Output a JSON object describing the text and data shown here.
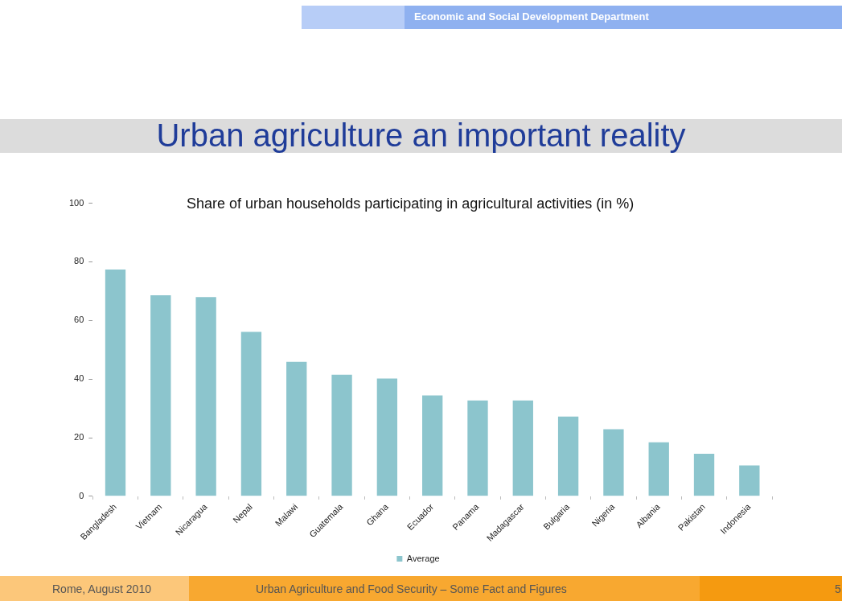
{
  "chart_data": {
    "type": "bar",
    "title": "Urban agriculture an important reality",
    "subtitle": "Share of urban households participating in agricultural activities (in %)",
    "categories": [
      "Bangladesh",
      "Vietnam",
      "Nicaragua",
      "Nepal",
      "Malawi",
      "Guatemala",
      "Ghana",
      "Ecuador",
      "Panama",
      "Madagascar",
      "Bulgaria",
      "Nigeria",
      "Albania",
      "Pakistan",
      "Indonesia"
    ],
    "series": [
      {
        "name": "Average",
        "color": "#8cc5cd",
        "values": [
          77.4,
          68.6,
          68,
          56.1,
          45.9,
          41.5,
          40.2,
          34.4,
          32.7,
          32.7,
          27.2,
          22.9,
          18.4,
          14.5,
          10.5
        ]
      }
    ],
    "ylim": [
      0,
      100
    ],
    "yticks": [
      0,
      20,
      40,
      60,
      80,
      100
    ],
    "grid": false,
    "legend": "bottom",
    "annotations": [
      "Economic and Social Development Department",
      "Rome, August 2010",
      "Urban Agriculture and Food Security – Some Fact and Figures",
      "5"
    ]
  }
}
